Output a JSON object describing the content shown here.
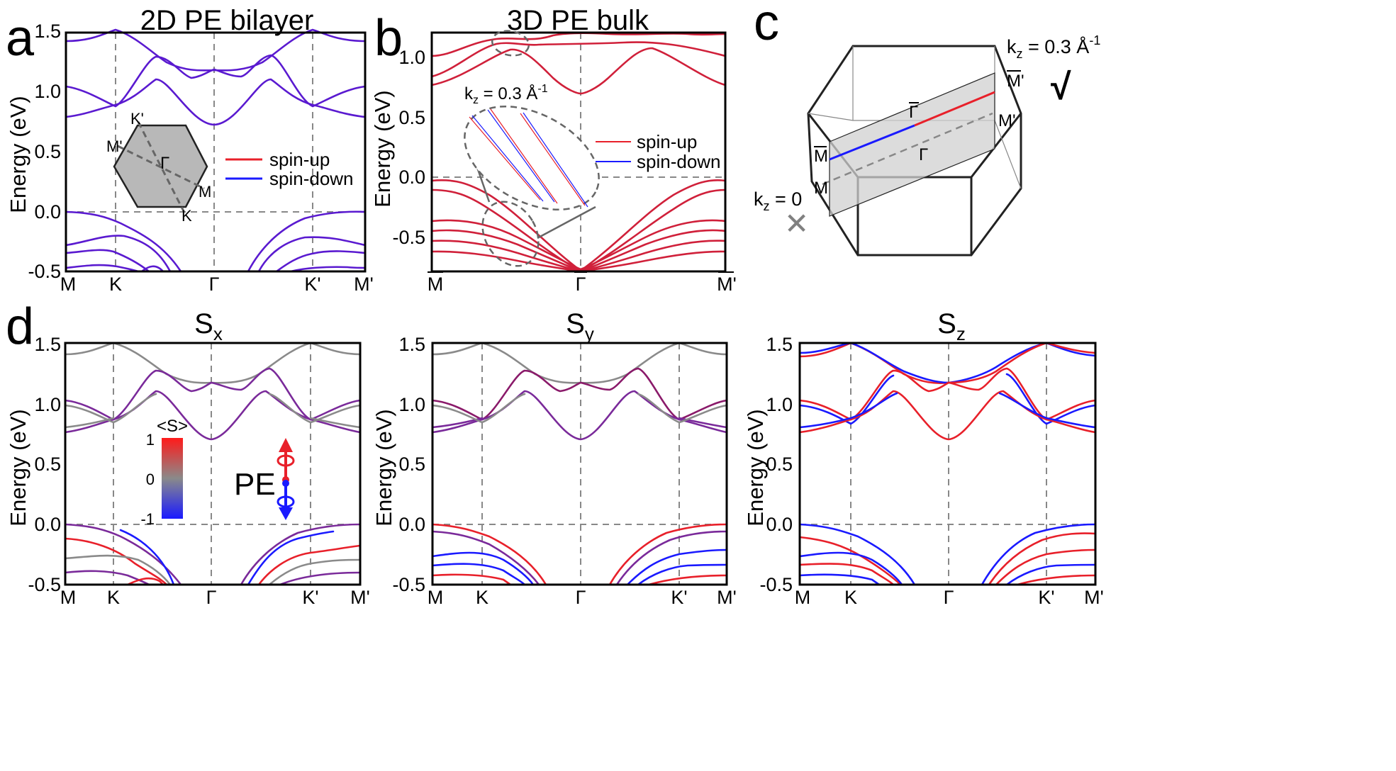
{
  "panels": {
    "a": {
      "letter": "a",
      "title": "2D PE bilayer",
      "ylabel": "Energy (eV)",
      "yticks": [
        "1.5",
        "1.0",
        "0.5",
        "0.0",
        "-0.5"
      ],
      "xticks": [
        "M",
        "K",
        "Γ",
        "K'",
        "M'"
      ],
      "legend": [
        "spin-up",
        "spin-down"
      ],
      "inset_labels": [
        "K'",
        "M'",
        "Γ",
        "M",
        "K"
      ]
    },
    "b": {
      "letter": "b",
      "title": "3D PE bulk",
      "ylabel": "Energy (eV)",
      "yticks": [
        "1.0",
        "0.5",
        "0.0",
        "-0.5"
      ],
      "xticks": [
        "M",
        "Γ",
        "M'"
      ],
      "legend": [
        "spin-up",
        "spin-down"
      ],
      "kz_label": "k",
      "kz_sub": "z",
      "kz_value": " = 0.3 Å",
      "kz_sup": "-1"
    },
    "c": {
      "letter": "c",
      "kz_label": "k",
      "kz_sub": "z",
      "kz_top_value": " = 0.3 Å",
      "kz_sup": "-1",
      "kz_zero_value": " = 0",
      "check": "√",
      "cross": "✕",
      "points": [
        "M'",
        "Γ",
        "M'",
        "M",
        "Γ",
        "M"
      ]
    },
    "d": {
      "letter": "d",
      "titles": [
        {
          "main": "S",
          "sub": "x"
        },
        {
          "main": "S",
          "sub": "y"
        },
        {
          "main": "S",
          "sub": "z"
        }
      ],
      "ylabel": "Energy (eV)",
      "yticks": [
        "1.5",
        "1.0",
        "0.5",
        "0.0",
        "-0.5"
      ],
      "xticks": [
        "M",
        "K",
        "Γ",
        "K'",
        "M'"
      ],
      "colorbar_title": "<S>",
      "colorbar_ticks": [
        "1",
        "0",
        "-1"
      ],
      "pe_label": "PE"
    }
  },
  "colors": {
    "spin_up": "#e8202a",
    "spin_down": "#1a1aff",
    "mixed": "#5a1ad0",
    "bulk_band": "#d0203a",
    "neutral": "#8a8a8a",
    "purple": "#7a2a9a"
  }
}
